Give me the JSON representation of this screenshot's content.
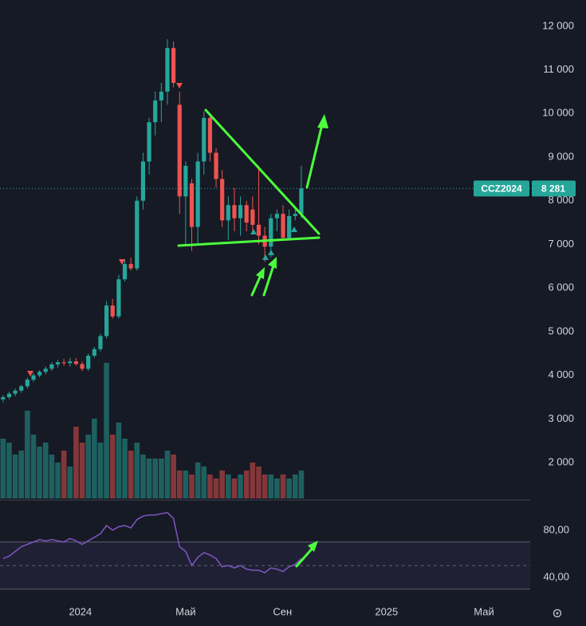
{
  "chart_data": [
    {
      "type": "candlestick",
      "symbol": "CCZ2024",
      "last_label": "8 281",
      "up_color": "#26a69a",
      "down_color": "#ef5350",
      "grid": false,
      "xlim": [
        -0.5,
        86.6
      ],
      "ylim": [
        1180,
        12600
      ],
      "yticks": [
        {
          "value": 2000,
          "label": "2 000"
        },
        {
          "value": 3000,
          "label": "3 000"
        },
        {
          "value": 4000,
          "label": "4 000"
        },
        {
          "value": 5000,
          "label": "5 000"
        },
        {
          "value": 6000,
          "label": "6 000"
        },
        {
          "value": 7000,
          "label": "7 000"
        },
        {
          "value": 8000,
          "label": "8 000"
        },
        {
          "value": 9000,
          "label": "9 000"
        },
        {
          "value": 10000,
          "label": "10 000"
        },
        {
          "value": 11000,
          "label": "11 000"
        },
        {
          "value": 12000,
          "label": "12 000"
        }
      ],
      "open": [
        3450,
        3500,
        3580,
        3650,
        3750,
        3900,
        4000,
        4080,
        4150,
        4250,
        4300,
        4280,
        4320,
        4260,
        4150,
        4450,
        4600,
        4900,
        5600,
        5350,
        6200,
        6550,
        6450,
        8000,
        8900,
        9800,
        10300,
        10500,
        11500,
        10200,
        8100,
        8400,
        7400,
        8900,
        9900,
        9100,
        8500,
        7550,
        7900,
        7600,
        7900,
        7800,
        7450,
        7200,
        6950,
        7600,
        7700,
        7150,
        7650,
        7700
      ],
      "high": [
        3550,
        3620,
        3700,
        3780,
        3950,
        4050,
        4120,
        4200,
        4300,
        4350,
        4380,
        4400,
        4400,
        4320,
        4500,
        4650,
        4950,
        5700,
        5750,
        6300,
        6650,
        6700,
        8100,
        9100,
        9900,
        10500,
        10700,
        11700,
        11650,
        10500,
        8900,
        8500,
        9100,
        10050,
        10000,
        9200,
        8700,
        8100,
        8300,
        8100,
        8000,
        8100,
        8800,
        7400,
        7700,
        7800,
        7900,
        7800,
        7800,
        8800
      ],
      "low": [
        3380,
        3450,
        3520,
        3600,
        3700,
        3850,
        3950,
        4020,
        4100,
        4180,
        4220,
        4200,
        4220,
        4100,
        4100,
        4400,
        4550,
        4850,
        5300,
        5300,
        6150,
        6400,
        6400,
        7800,
        8600,
        9500,
        9800,
        10200,
        10600,
        7700,
        7000,
        6850,
        7000,
        8600,
        8900,
        8300,
        7400,
        7100,
        7300,
        7200,
        7300,
        7300,
        7000,
        6600,
        6700,
        7300,
        7100,
        7100,
        7550,
        7600
      ],
      "close": [
        3500,
        3580,
        3650,
        3750,
        3900,
        4000,
        4080,
        4150,
        4250,
        4300,
        4280,
        4320,
        4260,
        4150,
        4450,
        4600,
        4900,
        5600,
        5350,
        6200,
        6550,
        6450,
        8000,
        8900,
        9800,
        10300,
        10500,
        11500,
        10700,
        8100,
        8800,
        7400,
        8900,
        9900,
        9100,
        8500,
        7550,
        7900,
        7600,
        7900,
        7500,
        7450,
        7200,
        6950,
        7600,
        7700,
        7150,
        7650,
        7700,
        8281
      ],
      "volume_ylim": [
        0,
        200
      ],
      "volume": [
        75,
        70,
        55,
        60,
        110,
        80,
        65,
        70,
        55,
        45,
        60,
        40,
        90,
        70,
        80,
        100,
        70,
        170,
        80,
        95,
        75,
        60,
        70,
        55,
        50,
        50,
        50,
        60,
        55,
        35,
        35,
        30,
        45,
        40,
        30,
        25,
        35,
        30,
        25,
        30,
        35,
        45,
        40,
        30,
        30,
        25,
        30,
        25,
        30,
        35
      ]
    },
    {
      "type": "line",
      "color": "#7e57c2",
      "xlim": [
        -0.5,
        86.6
      ],
      "ylim": [
        19,
        105
      ],
      "yticks": [
        {
          "value": 80,
          "label": "80,00"
        },
        {
          "value": 40,
          "label": "40,00"
        }
      ],
      "levels": [
        70,
        50,
        30
      ],
      "xticks": [
        {
          "value": 12.7,
          "label": "2024"
        },
        {
          "value": 30.0,
          "label": "Май"
        },
        {
          "value": 45.9,
          "label": "Сен"
        },
        {
          "value": 63.0,
          "label": "2025"
        },
        {
          "value": 79.0,
          "label": "Май"
        }
      ],
      "values": [
        56,
        58,
        62,
        66,
        68,
        70,
        72,
        71,
        72,
        71,
        70,
        73,
        71,
        68,
        71,
        74,
        77,
        84,
        80,
        83,
        84,
        82,
        89,
        92,
        93,
        93,
        94,
        95,
        90,
        66,
        62,
        50,
        57,
        61,
        59,
        56,
        49,
        50,
        48,
        50,
        47,
        46,
        46,
        44,
        48,
        47,
        45,
        49,
        51,
        56
      ]
    }
  ]
}
